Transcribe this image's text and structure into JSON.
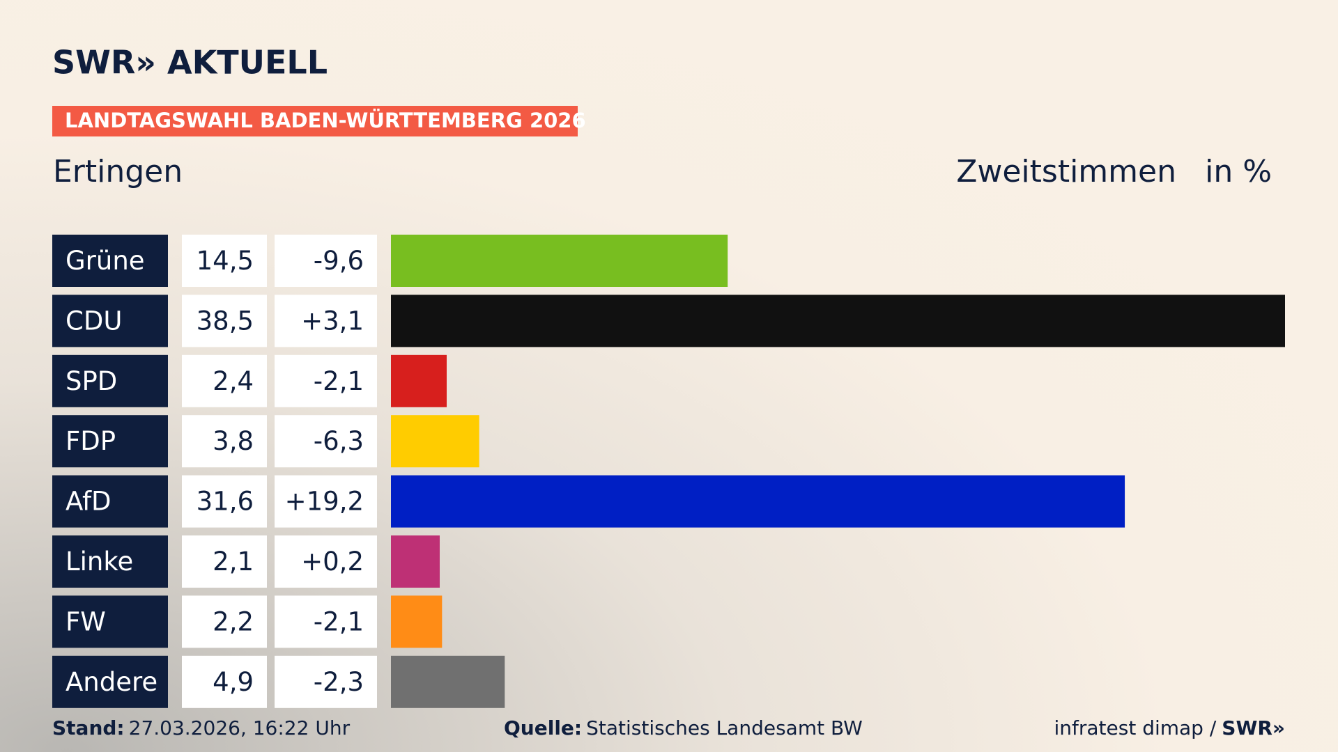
{
  "chart_data": {
    "type": "bar",
    "logo": "SWR» AKTUELL",
    "banner": "LANDTAGSWAHL BADEN-WÜRTTEMBERG 2026",
    "title": "Ertingen",
    "subtitle": "Zweitstimmen",
    "unit": "in %",
    "categories": [
      "Grüne",
      "CDU",
      "SPD",
      "FDP",
      "AfD",
      "Linke",
      "FW",
      "Andere"
    ],
    "values": [
      14.5,
      38.5,
      2.4,
      3.8,
      31.6,
      2.1,
      2.2,
      4.9
    ],
    "value_labels": [
      "14,5",
      "38,5",
      "2,4",
      "3,8",
      "31,6",
      "2,1",
      "2,2",
      "4,9"
    ],
    "changes": [
      -9.6,
      3.1,
      -2.1,
      -6.3,
      19.2,
      0.2,
      -2.1,
      -2.3
    ],
    "change_labels": [
      "-9,6",
      "+3,1",
      "-2,1",
      "-6,3",
      "+19,2",
      "+0,2",
      "-2,1",
      "-2,3"
    ],
    "colors": [
      "#78be20",
      "#111111",
      "#d71f1d",
      "#ffcc00",
      "#001fc4",
      "#be3075",
      "#ff8c16",
      "#707070"
    ],
    "xlim": [
      0,
      38.5
    ],
    "footer": {
      "stand_label": "Stand:",
      "stand": "27.03.2026, 16:22 Uhr",
      "source_label": "Quelle:",
      "source": "Statistisches Landesamt BW",
      "credit": "infratest dimap /",
      "credit_logo": "SWR»"
    }
  }
}
